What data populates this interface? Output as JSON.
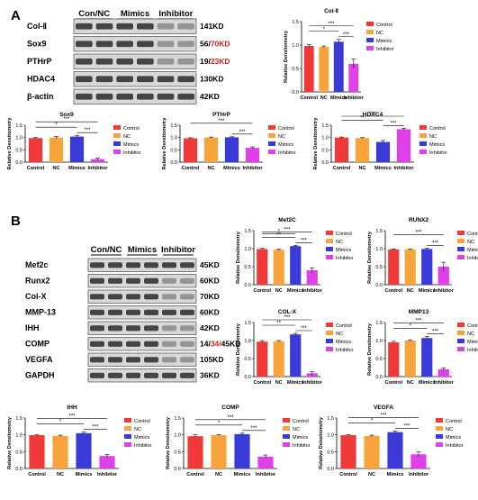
{
  "panels": {
    "A": {
      "label": "A",
      "blot": {
        "groups": [
          "Con/NC",
          "Mimics",
          "Inhibitor"
        ],
        "rows": [
          {
            "name": "Col-Ⅱ",
            "size": "141KD"
          },
          {
            "name": "Sox9",
            "size": "56/70KD"
          },
          {
            "name": "PTHrP",
            "size": "19/23KD"
          },
          {
            "name": "HDAC4",
            "size": "130KD"
          },
          {
            "name": "β-actin",
            "size": "42KD"
          }
        ]
      }
    },
    "B": {
      "label": "B",
      "blot": {
        "groups": [
          "Con/NC",
          "Mimics",
          "Inhibitor"
        ],
        "rows": [
          {
            "name": "Mef2c",
            "size": "45KD"
          },
          {
            "name": "Runx2",
            "size": "60KD"
          },
          {
            "name": "Col-X",
            "size": "70KD"
          },
          {
            "name": "MMP-13",
            "size": "60KD"
          },
          {
            "name": "IHH",
            "size": "42KD"
          },
          {
            "name": "COMP",
            "size": "14/34/45KD"
          },
          {
            "name": "VEGFA",
            "size": "105KD"
          },
          {
            "name": "GAPDH",
            "size": "36KD"
          }
        ]
      }
    }
  },
  "colors": {
    "Control": "#f03a3a",
    "NC": "#f8a43c",
    "Mimics": "#3a3ad6",
    "Inhibitor": "#e040e8",
    "size_red": "#e02020"
  },
  "chart_data": [
    {
      "id": "col2",
      "type": "bar",
      "title": "Col-Ⅱ",
      "ylabel": "Relative Densitometry",
      "categories": [
        "Control",
        "NC",
        "Mimics",
        "Inhibitor"
      ],
      "values": [
        0.98,
        0.96,
        1.07,
        0.6
      ],
      "errors": [
        0.03,
        0.02,
        0.05,
        0.1
      ],
      "ylim": [
        0,
        1.5
      ],
      "yticks": [
        "0.0",
        "0.5",
        "1.0",
        "1.5"
      ],
      "legend": [
        "Control",
        "NC",
        "Mimics",
        "Inhibitor"
      ],
      "significance": [
        {
          "from": 0,
          "to": 3,
          "label": "***"
        },
        {
          "from": 0,
          "to": 2,
          "label": "*"
        },
        {
          "from": 2,
          "to": 3,
          "label": "***"
        }
      ]
    },
    {
      "id": "sox9",
      "type": "bar",
      "title": "Sox9",
      "ylabel": "Relative Densitometry",
      "categories": [
        "Control",
        "NC",
        "Mimics",
        "Inhibitor"
      ],
      "values": [
        0.98,
        1.0,
        1.04,
        0.12
      ],
      "errors": [
        0.02,
        0.04,
        0.05,
        0.04
      ],
      "ylim": [
        0,
        1.5
      ],
      "yticks": [
        "0.0",
        "0.5",
        "1.0",
        "1.5"
      ],
      "legend": [
        "Control",
        "NC",
        "Mimics",
        "Inhibitor"
      ],
      "significance": [
        {
          "from": 0,
          "to": 3,
          "label": "***"
        },
        {
          "from": 0,
          "to": 2,
          "label": "*"
        },
        {
          "from": 2,
          "to": 3,
          "label": "***"
        }
      ]
    },
    {
      "id": "pthrp",
      "type": "bar",
      "title": "PTHrP",
      "ylabel": "Relative Densitometry",
      "categories": [
        "Control",
        "NC",
        "Mimics",
        "Inhibitor"
      ],
      "values": [
        0.97,
        1.0,
        1.01,
        0.58
      ],
      "errors": [
        0.02,
        0.02,
        0.02,
        0.04
      ],
      "ylim": [
        0,
        1.5
      ],
      "yticks": [
        "0.0",
        "0.5",
        "1.0",
        "1.5"
      ],
      "legend": [
        "Control",
        "NC",
        "Mimics",
        "Inhibitor"
      ],
      "significance": [
        {
          "from": 0,
          "to": 3,
          "label": "***"
        },
        {
          "from": 2,
          "to": 3,
          "label": "***"
        }
      ]
    },
    {
      "id": "hdac4",
      "type": "bar",
      "title": "HDAC4",
      "ylabel": "Relative Densitometry",
      "categories": [
        "Control",
        "NC",
        "Mimics",
        "Inhibitor"
      ],
      "values": [
        1.0,
        0.98,
        0.82,
        1.34
      ],
      "errors": [
        0.02,
        0.02,
        0.06,
        0.04
      ],
      "ylim": [
        0,
        1.5
      ],
      "yticks": [
        "0.0",
        "0.5",
        "1.0",
        "1.5"
      ],
      "legend": [
        "Control",
        "NC",
        "Mimics",
        "Inhibitor"
      ],
      "significance": [
        {
          "from": 0,
          "to": 3,
          "label": "***"
        },
        {
          "from": 0,
          "to": 2,
          "label": "**"
        },
        {
          "from": 2,
          "to": 3,
          "label": "***"
        }
      ]
    },
    {
      "id": "mef2c",
      "type": "bar",
      "title": "Mef2C",
      "ylabel": "Relative Densitometry",
      "categories": [
        "Control",
        "NC",
        "Mimics",
        "Inhibitor"
      ],
      "values": [
        0.99,
        0.97,
        1.07,
        0.4
      ],
      "errors": [
        0.02,
        0.02,
        0.02,
        0.07
      ],
      "ylim": [
        0,
        1.5
      ],
      "yticks": [
        "0.0",
        "0.5",
        "1.0",
        "1.5"
      ],
      "legend": [
        "Control",
        "NC",
        "Mimics",
        "Inhibitor"
      ],
      "significance": [
        {
          "from": 0,
          "to": 3,
          "label": "***"
        },
        {
          "from": 0,
          "to": 2,
          "label": "**"
        },
        {
          "from": 0,
          "to": 2,
          "label": "*"
        },
        {
          "from": 2,
          "to": 3,
          "label": "***"
        }
      ]
    },
    {
      "id": "runx2",
      "type": "bar",
      "title": "RUNX2",
      "ylabel": "Relative Densitometry",
      "categories": [
        "Control",
        "NC",
        "Mimics",
        "Inhibitor"
      ],
      "values": [
        0.98,
        0.98,
        0.99,
        0.5
      ],
      "errors": [
        0.01,
        0.01,
        0.02,
        0.12
      ],
      "ylim": [
        0,
        1.5
      ],
      "yticks": [
        "0.0",
        "0.5",
        "1.0",
        "1.5"
      ],
      "legend": [
        "Control",
        "NC",
        "Mimics",
        "Inhibitor"
      ],
      "significance": [
        {
          "from": 0,
          "to": 3,
          "label": "***"
        },
        {
          "from": 2,
          "to": 3,
          "label": "***"
        }
      ]
    },
    {
      "id": "colx",
      "type": "bar",
      "title": "COL-X",
      "ylabel": "Relative Densitometry",
      "categories": [
        "Control",
        "NC",
        "Mimics",
        "Inhibitor"
      ],
      "values": [
        0.97,
        0.98,
        1.17,
        0.09
      ],
      "errors": [
        0.03,
        0.02,
        0.03,
        0.05
      ],
      "ylim": [
        0,
        1.5
      ],
      "yticks": [
        "0.0",
        "0.5",
        "1.0",
        "1.5"
      ],
      "legend": [
        "Control",
        "NC",
        "Mimics",
        "Inhibitor"
      ],
      "significance": [
        {
          "from": 0,
          "to": 3,
          "label": "***"
        },
        {
          "from": 0,
          "to": 2,
          "label": "**"
        },
        {
          "from": 2,
          "to": 3,
          "label": "***"
        }
      ]
    },
    {
      "id": "mmp13",
      "type": "bar",
      "title": "MMP13",
      "ylabel": "Relative Densitometry",
      "categories": [
        "Control",
        "NC",
        "Mimics",
        "Inhibitor"
      ],
      "values": [
        0.95,
        1.0,
        1.07,
        0.2
      ],
      "errors": [
        0.03,
        0.02,
        0.04,
        0.04
      ],
      "ylim": [
        0,
        1.5
      ],
      "yticks": [
        "0.0",
        "0.5",
        "1.0",
        "1.5"
      ],
      "legend": [
        "Control",
        "NC",
        "Mimics",
        "Inhibitor"
      ],
      "significance": [
        {
          "from": 0,
          "to": 3,
          "label": "***"
        },
        {
          "from": 0,
          "to": 2,
          "label": "*"
        },
        {
          "from": 2,
          "to": 3,
          "label": "***"
        }
      ]
    },
    {
      "id": "ihh",
      "type": "bar",
      "title": "IHH",
      "ylabel": "Relative Densitometry",
      "categories": [
        "Control",
        "NC",
        "Mimics",
        "Inhibitor"
      ],
      "values": [
        0.99,
        0.97,
        1.05,
        0.37
      ],
      "errors": [
        0.01,
        0.02,
        0.03,
        0.05
      ],
      "ylim": [
        0,
        1.5
      ],
      "yticks": [
        "0.0",
        "0.5",
        "1.0",
        "1.5"
      ],
      "legend": [
        "Control",
        "NC",
        "Mimics",
        "Inhibitor"
      ],
      "significance": [
        {
          "from": 0,
          "to": 3,
          "label": "***"
        },
        {
          "from": 0,
          "to": 2,
          "label": "*"
        },
        {
          "from": 2,
          "to": 3,
          "label": "***"
        }
      ]
    },
    {
      "id": "comp",
      "type": "bar",
      "title": "COMP",
      "ylabel": "Relative Densitometry",
      "categories": [
        "Control",
        "NC",
        "Mimics",
        "Inhibitor"
      ],
      "values": [
        0.96,
        0.99,
        1.02,
        0.35
      ],
      "errors": [
        0.04,
        0.02,
        0.03,
        0.05
      ],
      "ylim": [
        0,
        1.5
      ],
      "yticks": [
        "0.0",
        "0.5",
        "1.0",
        "1.5"
      ],
      "legend": [
        "Control",
        "NC",
        "Mimics",
        "Inhibitor"
      ],
      "significance": [
        {
          "from": 0,
          "to": 3,
          "label": "***"
        },
        {
          "from": 0,
          "to": 2,
          "label": "*"
        },
        {
          "from": 2,
          "to": 3,
          "label": "***"
        }
      ]
    },
    {
      "id": "vegfa",
      "type": "bar",
      "title": "VEGFA",
      "ylabel": "Relative Densitometry",
      "categories": [
        "Control",
        "NC",
        "Mimics",
        "Inhibitor"
      ],
      "values": [
        0.99,
        0.97,
        1.08,
        0.42
      ],
      "errors": [
        0.01,
        0.02,
        0.03,
        0.07
      ],
      "ylim": [
        0,
        1.5
      ],
      "yticks": [
        "0.0",
        "0.5",
        "1.0",
        "1.5"
      ],
      "legend": [
        "Control",
        "NC",
        "Mimics",
        "Inhibitor"
      ],
      "significance": [
        {
          "from": 0,
          "to": 3,
          "label": "***"
        },
        {
          "from": 0,
          "to": 2,
          "label": "*"
        },
        {
          "from": 2,
          "to": 3,
          "label": "***"
        }
      ]
    }
  ]
}
